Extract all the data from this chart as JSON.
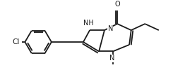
{
  "bg_color": "#ffffff",
  "line_color": "#1a1a1a",
  "line_width": 1.3,
  "font_size": 7.0,
  "figsize": [
    2.62,
    1.1
  ],
  "dpi": 100,
  "xlim": [
    0,
    10
  ],
  "ylim": [
    0,
    3.8
  ]
}
